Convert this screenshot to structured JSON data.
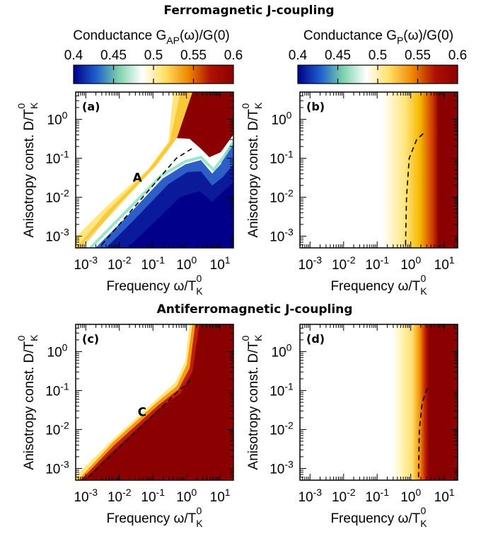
{
  "sections": [
    {
      "title": "Ferromagnetic J-coupling"
    },
    {
      "title": "Antiferromagnetic J-coupling"
    }
  ],
  "colorbars": [
    {
      "title": "Conductance G_AP(ω)/G(0)",
      "min": 0.4,
      "max": 0.6,
      "ticks": [
        "0.4",
        "0.45",
        "0.5",
        "0.55",
        "0.6"
      ]
    },
    {
      "title": "Conductance G_P(ω)/G(0)",
      "min": 0.4,
      "max": 0.6,
      "ticks": [
        "0.4",
        "0.45",
        "0.5",
        "0.55",
        "0.6"
      ]
    }
  ],
  "colormap": [
    "#00008b",
    "#1f5fcf",
    "#7fd3ae",
    "#ffffff",
    "#ffe066",
    "#f08a00",
    "#b01000",
    "#8b0000"
  ],
  "chart_data": [
    {
      "type": "heatmap",
      "panel": "(a)",
      "xlabel": "Frequency ω/T_K^0",
      "ylabel": "Anisotropy const. D/T_K^0",
      "xscale": "log",
      "yscale": "log",
      "xlim": [
        0.0005,
        25
      ],
      "ylim": [
        0.0005,
        5
      ],
      "xticks": [
        "10^-3",
        "10^-2",
        "10^-1",
        "10^0",
        "10^1"
      ],
      "yticks": [
        "10^-3",
        "10^-2",
        "10^-1",
        "10^0"
      ],
      "annotation": "A",
      "dashed_line": {
        "x": [
          0.003,
          0.5,
          1.5
        ],
        "y": [
          0.0006,
          0.1,
          0.18
        ]
      }
    },
    {
      "type": "heatmap",
      "panel": "(b)",
      "xlabel": "Frequency ω/T_K^0",
      "ylabel": "Anisotropy const. D/T_K^0",
      "xscale": "log",
      "yscale": "log",
      "xlim": [
        0.0005,
        25
      ],
      "ylim": [
        0.0005,
        5
      ],
      "xticks": [
        "10^-3",
        "10^-2",
        "10^-1",
        "10^0",
        "10^1"
      ],
      "yticks": [
        "10^-3",
        "10^-2",
        "10^-1",
        "10^0"
      ],
      "dashed_line": {
        "x": [
          0.7,
          0.75,
          0.9,
          1.5,
          2.5
        ],
        "y": [
          0.0006,
          0.01,
          0.1,
          0.3,
          0.45
        ]
      }
    },
    {
      "type": "heatmap",
      "panel": "(c)",
      "xlabel": "Frequency ω/T_K^0",
      "ylabel": "Anisotropy const. D/T_K^0",
      "xscale": "log",
      "yscale": "log",
      "xlim": [
        0.0005,
        25
      ],
      "ylim": [
        0.0005,
        5
      ],
      "xticks": [
        "10^-3",
        "10^-2",
        "10^-1",
        "10^0",
        "10^1"
      ],
      "yticks": [
        "10^-3",
        "10^-2",
        "10^-1",
        "10^0"
      ],
      "annotation": "C",
      "dashed_line": {
        "x": [
          0.0012,
          0.6,
          1.3
        ],
        "y": [
          0.0006,
          0.1,
          0.18
        ]
      }
    },
    {
      "type": "heatmap",
      "panel": "(d)",
      "xlabel": "Frequency ω/T_K^0",
      "ylabel": "Anisotropy const. D/T_K^0",
      "xscale": "log",
      "yscale": "log",
      "xlim": [
        0.0005,
        25
      ],
      "ylim": [
        0.0005,
        5
      ],
      "xticks": [
        "10^-3",
        "10^-2",
        "10^-1",
        "10^0",
        "10^1"
      ],
      "yticks": [
        "10^-3",
        "10^-2",
        "10^-1",
        "10^0"
      ],
      "dashed_line": {
        "x": [
          1.7,
          1.8,
          2.2,
          3.2
        ],
        "y": [
          0.0006,
          0.01,
          0.05,
          0.12
        ]
      }
    }
  ]
}
